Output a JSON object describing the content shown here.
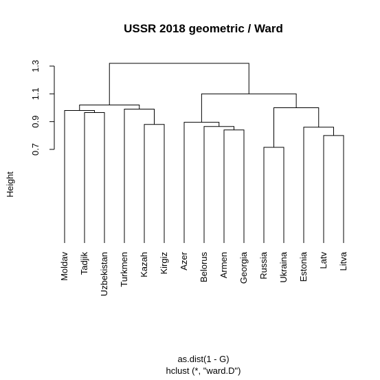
{
  "chart_data": {
    "type": "dendrogram",
    "title": "USSR 2018 geometric / Ward",
    "ylabel": "Height",
    "xlabel": "as.dist(1 - G)",
    "sublabel": "hclust (*, \"ward.D\")",
    "yticks": [
      0.7,
      0.9,
      1.1,
      1.3
    ],
    "ytick_labels": [
      "0.7",
      "0.9",
      "1.1",
      "1.3"
    ],
    "ylim": [
      -0.72,
      1.38
    ],
    "leaves": [
      "Moldav",
      "Tadjik",
      "Uzbekistan",
      "Turkmen",
      "Kazah",
      "Kirgiz",
      "Azer",
      "Belorus",
      "Armen",
      "Georgia",
      "Russia",
      "Ukraina",
      "Estonia",
      "Latv",
      "Litva"
    ],
    "merges": [
      {
        "left": "Tadjik",
        "right": "Uzbekistan",
        "height": 0.965
      },
      {
        "left": "Kazah",
        "right": "Kirgiz",
        "height": 0.88
      },
      {
        "left": "Russia",
        "right": "Ukraina",
        "height": 0.715
      },
      {
        "left": "Latv",
        "right": "Litva",
        "height": 0.8
      },
      {
        "left": "Armen",
        "right": "Georgia",
        "height": 0.84
      },
      {
        "left": "Belorus",
        "right": "Armen+Georgia",
        "height": 0.865
      },
      {
        "left": "Estonia",
        "right": "Latv+Litva",
        "height": 0.86
      },
      {
        "left": "Azer",
        "right": "Belorus+Armen+Georgia",
        "height": 0.895
      },
      {
        "left": "Moldav",
        "right": "Tadjik+Uzbekistan",
        "height": 0.98
      },
      {
        "left": "Turkmen",
        "right": "Kazah+Kirgiz",
        "height": 0.99
      },
      {
        "left": "Russia+Ukraina",
        "right": "Estonia+Latv+Litva",
        "height": 1.0
      },
      {
        "left": "Moldav+Tadjik+Uzbekistan",
        "right": "Turkmen+Kazah+Kirgiz",
        "height": 1.02
      },
      {
        "left": "Azer+Belorus+Armen+Georgia",
        "right": "Russia+Ukraina+Estonia+Latv+Litva",
        "height": 1.1
      },
      {
        "left": "Moldav+Tadjik+Uzbekistan+Turkmen+Kazah+Kirgiz",
        "right": "Azer+Belorus+Armen+Georgia+Russia+Ukraina+Estonia+Latv+Litva",
        "height": 1.32
      }
    ]
  }
}
